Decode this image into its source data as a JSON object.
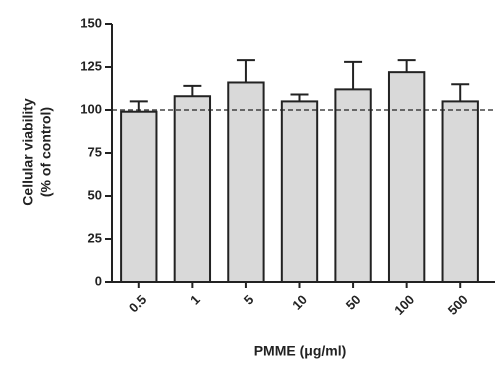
{
  "chart_data": {
    "type": "bar",
    "ylabel": [
      "Cellular viability",
      "(% of control)"
    ],
    "xlabel": "PMME (μg/ml)",
    "categories": [
      "0.5",
      "1",
      "5",
      "10",
      "50",
      "100",
      "500"
    ],
    "values": [
      99,
      108,
      116,
      105,
      112,
      122,
      105
    ],
    "errors": [
      6,
      6,
      13,
      4,
      16,
      7,
      10
    ],
    "color": "#d9d9d9",
    "ylim": [
      0,
      150
    ],
    "yticks": [
      0,
      25,
      50,
      75,
      100,
      125,
      150
    ],
    "reference_line": 100
  }
}
